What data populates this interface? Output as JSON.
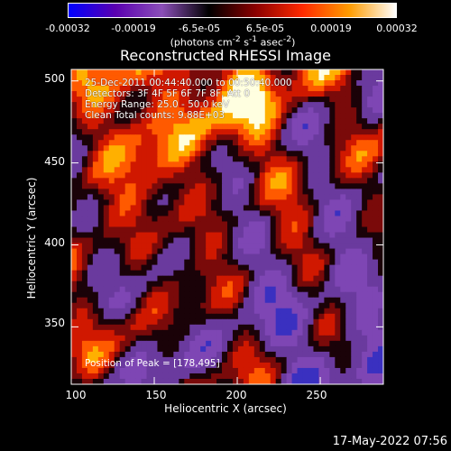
{
  "colorbar": {
    "ticks": [
      "-0.00032",
      "-0.00019",
      "-6.5e-05",
      "6.5e-05",
      "0.00019",
      "0.00032"
    ],
    "tick_values": [
      -0.00032,
      -0.00019,
      -6.5e-05,
      6.5e-05,
      0.00019,
      0.00032
    ],
    "unit_html": "(photons cm<sup>-2</sup> s<sup>-1</sup> asec<sup>-2</sup>)",
    "colormap": [
      "#0000ff",
      "#5a00b0",
      "#8b4fb8",
      "#000000",
      "#8b0000",
      "#ff2a00",
      "#ff9c00",
      "#ffffff"
    ]
  },
  "chart_data": {
    "type": "heatmap",
    "title": "Reconstructed RHESSI Image",
    "xlabel": "Heliocentric X (arcsec)",
    "ylabel": "Heliocentric Y (arcsec)",
    "xlim": [
      100,
      288
    ],
    "ylim": [
      315,
      507
    ],
    "xticks": [
      "100",
      "150",
      "200",
      "250"
    ],
    "xtick_values": [
      100,
      150,
      200,
      250
    ],
    "yticks": [
      "350",
      "400",
      "450",
      "500"
    ],
    "ytick_values": [
      350,
      400,
      450,
      500
    ],
    "annotations": [
      "25-Dec-2011 00:44:40.000 to 00:50:40.000",
      "Detectors: 3F 4F 5F 6F 7F 8F, Att 0",
      "Energy Range: 25.0 - 50.0 keV",
      "Clean     Total counts: 9.88E+03"
    ],
    "peak_label": "Position of Peak = [178,495]",
    "peak": [
      178,
      495
    ]
  },
  "timestamp": "17-May-2022 07:56"
}
